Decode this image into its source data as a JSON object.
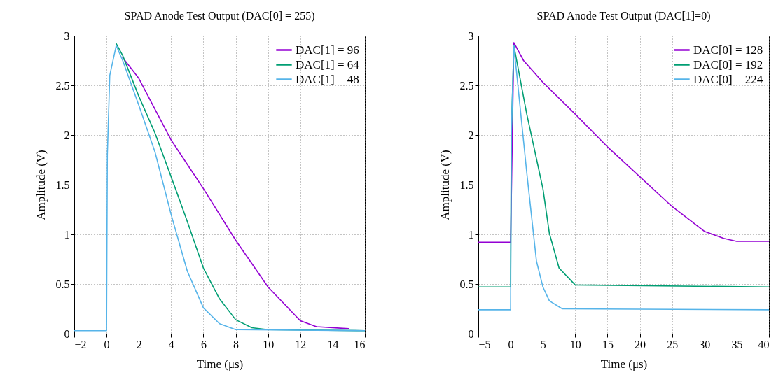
{
  "chart_data": [
    {
      "type": "line",
      "title": "SPAD Anode Test Output (DAC[0] = 255)",
      "xlabel": "Time (μs)",
      "ylabel": "Amplitude (V)",
      "xlim": [
        -2,
        16
      ],
      "ylim": [
        0,
        3
      ],
      "xticks": [
        -2,
        0,
        2,
        4,
        6,
        8,
        10,
        12,
        14,
        16
      ],
      "yticks": [
        0,
        0.5,
        1,
        1.5,
        2,
        2.5,
        3
      ],
      "grid": true,
      "legend": "top right",
      "series": [
        {
          "name": "DAC[1] = 96",
          "color": "#9400d3",
          "x": [
            1,
            2,
            4,
            6,
            8,
            10,
            12,
            13,
            15
          ],
          "values": [
            2.78,
            2.57,
            1.95,
            1.46,
            0.94,
            0.47,
            0.13,
            0.07,
            0.05
          ]
        },
        {
          "name": "DAC[1] = 64",
          "color": "#009e73",
          "x": [
            0.6,
            1,
            2,
            3,
            4,
            5,
            6,
            7,
            8,
            9,
            10,
            16
          ],
          "values": [
            2.92,
            2.8,
            2.39,
            2.02,
            1.58,
            1.13,
            0.66,
            0.35,
            0.14,
            0.06,
            0.04,
            0.03
          ]
        },
        {
          "name": "DAC[1] = 48",
          "color": "#56b4e9",
          "x": [
            -2,
            0,
            0.05,
            0.2,
            0.6,
            1,
            2,
            3,
            4,
            5,
            6,
            7,
            8,
            16
          ],
          "values": [
            0.03,
            0.03,
            1.8,
            2.6,
            2.9,
            2.75,
            2.3,
            1.83,
            1.2,
            0.63,
            0.26,
            0.1,
            0.04,
            0.03
          ]
        }
      ]
    },
    {
      "type": "line",
      "title": "SPAD Anode Test Output (DAC[1]=0)",
      "xlabel": "Time (μs)",
      "ylabel": "Amplitude (V)",
      "xlim": [
        -5,
        40
      ],
      "ylim": [
        0,
        3
      ],
      "xticks": [
        -5,
        0,
        5,
        10,
        15,
        20,
        25,
        30,
        35,
        40
      ],
      "yticks": [
        0,
        0.5,
        1,
        1.5,
        2,
        2.5,
        3
      ],
      "grid": true,
      "legend": "top right",
      "series": [
        {
          "name": "DAC[0] = 128",
          "color": "#9400d3",
          "x": [
            -5,
            0,
            0.5,
            2,
            5,
            10,
            15,
            20,
            25,
            30,
            33,
            35,
            40
          ],
          "values": [
            0.92,
            0.92,
            2.93,
            2.75,
            2.53,
            2.21,
            1.88,
            1.58,
            1.28,
            1.03,
            0.96,
            0.93,
            0.93
          ]
        },
        {
          "name": "DAC[0] = 192",
          "color": "#009e73",
          "x": [
            -5,
            0,
            0.1,
            0.5,
            2.5,
            5,
            6,
            7.5,
            10,
            40
          ],
          "values": [
            0.47,
            0.47,
            2.0,
            2.9,
            2.21,
            1.46,
            1.01,
            0.66,
            0.49,
            0.47
          ]
        },
        {
          "name": "DAC[0] = 224",
          "color": "#56b4e9",
          "x": [
            -5,
            0,
            0.1,
            0.5,
            2.5,
            4,
            5,
            6,
            8,
            40
          ],
          "values": [
            0.24,
            0.24,
            2.0,
            2.9,
            1.62,
            0.73,
            0.47,
            0.33,
            0.25,
            0.24
          ]
        }
      ]
    }
  ]
}
